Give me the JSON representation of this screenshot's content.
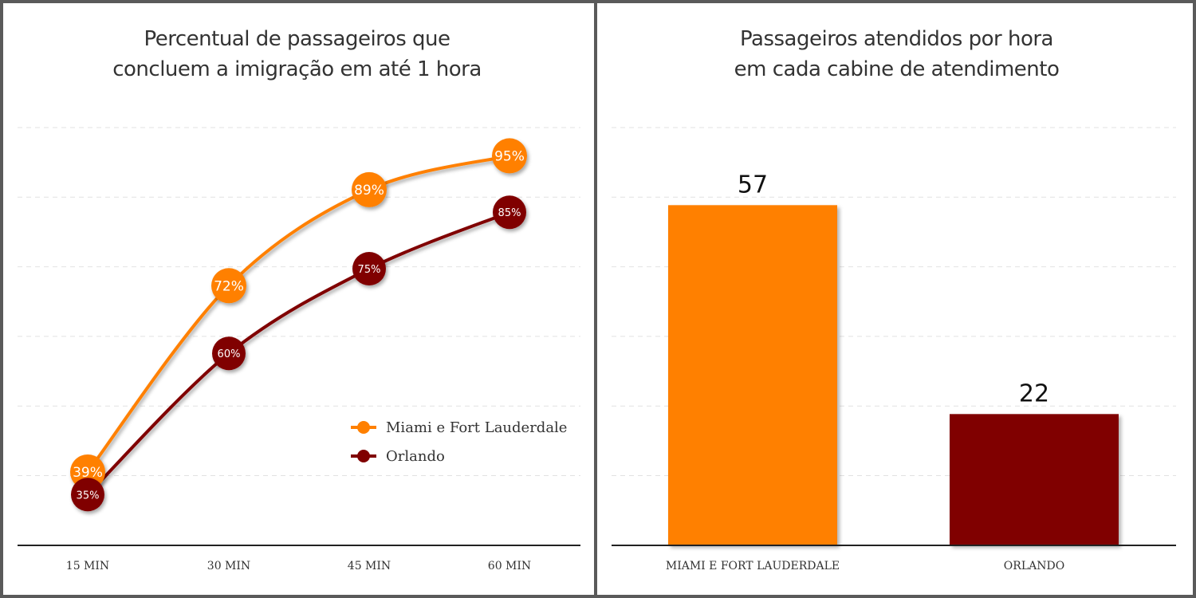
{
  "chart_data": [
    {
      "type": "line",
      "title_lines": [
        "Percentual de passageiros que",
        "concluem a imigração em até 1 hora"
      ],
      "categories": [
        "15 MIN",
        "30 MIN",
        "45 MIN",
        "60 MIN"
      ],
      "xlabel": "",
      "ylabel": "",
      "ylim": [
        26,
        100
      ],
      "grid": true,
      "legend_position": "bottom-right",
      "series": [
        {
          "name": "Miami e Fort Lauderdale",
          "color": "#ff8000",
          "values": [
            39,
            72,
            89,
            95
          ],
          "labels": [
            "39%",
            "72%",
            "89%",
            "95%"
          ]
        },
        {
          "name": "Orlando",
          "color": "#800000",
          "values": [
            35,
            60,
            75,
            85
          ],
          "labels": [
            "35%",
            "60%",
            "75%",
            "85%"
          ]
        }
      ]
    },
    {
      "type": "bar",
      "title_lines": [
        "Passageiros atendidos por hora",
        "em cada cabine de atendimento"
      ],
      "categories": [
        "MIAMI E FORT LAUDERDALE",
        "ORLANDO"
      ],
      "values": [
        57,
        22
      ],
      "value_labels": [
        "57",
        "22"
      ],
      "colors": [
        "#ff8000",
        "#800000"
      ],
      "xlabel": "",
      "ylabel": "",
      "ylim": [
        0,
        70
      ],
      "grid": true
    }
  ]
}
